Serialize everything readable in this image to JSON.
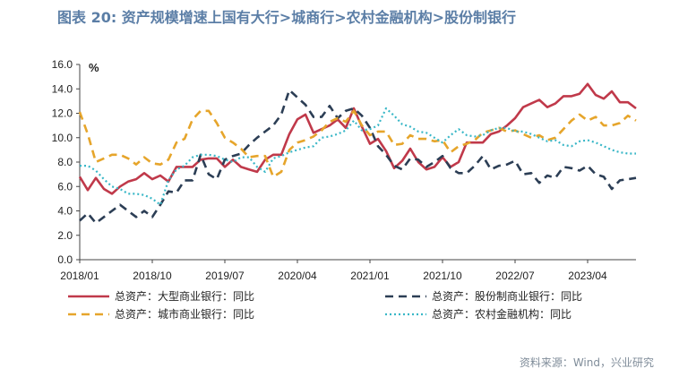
{
  "title": "图表 20: 资产规模增速上国有大行>城商行>农村金融机构>股份制银行",
  "source": "资料来源：Wind，兴业研究",
  "chart_data": {
    "type": "line",
    "unit": "%",
    "ylim": [
      0,
      16
    ],
    "yticks": [
      "0.0",
      "2.0",
      "4.0",
      "6.0",
      "8.0",
      "10.0",
      "12.0",
      "14.0",
      "16.0"
    ],
    "xticks": [
      {
        "label": "2018/01",
        "index": 0
      },
      {
        "label": "2018/10",
        "index": 9
      },
      {
        "label": "2019/07",
        "index": 18
      },
      {
        "label": "2020/04",
        "index": 27
      },
      {
        "label": "2021/01",
        "index": 36
      },
      {
        "label": "2021/10",
        "index": 45
      },
      {
        "label": "2022/07",
        "index": 54
      },
      {
        "label": "2023/04",
        "index": 63
      }
    ],
    "grid": false,
    "legend_position": "bottom",
    "series": [
      {
        "name": "总资产：大型商业银行：同比",
        "color": "#c0394a",
        "style": "solid",
        "values": [
          6.8,
          5.7,
          6.7,
          5.8,
          5.4,
          6.0,
          6.4,
          6.6,
          7.1,
          6.6,
          6.9,
          6.4,
          7.6,
          7.6,
          7.6,
          8.2,
          8.3,
          8.3,
          7.6,
          8.2,
          7.6,
          7.4,
          7.2,
          8.2,
          8.6,
          8.6,
          10.3,
          11.5,
          11.9,
          10.4,
          10.7,
          11.0,
          11.5,
          10.8,
          12.4,
          10.9,
          9.5,
          9.9,
          8.9,
          7.5,
          8.1,
          9.1,
          8.0,
          7.4,
          7.6,
          8.4,
          7.6,
          8.0,
          9.6,
          9.6,
          9.6,
          10.3,
          10.5,
          11.0,
          11.6,
          12.5,
          12.8,
          13.1,
          12.5,
          12.8,
          13.4,
          13.4,
          13.6,
          14.4,
          13.5,
          13.2,
          13.8,
          12.9,
          12.9,
          12.4
        ]
      },
      {
        "name": "总资产：股份制商业银行：同比",
        "color": "#2c3e55",
        "style": "dash",
        "values": [
          3.2,
          3.8,
          3.0,
          3.5,
          4.0,
          4.5,
          4.0,
          3.5,
          4.0,
          3.5,
          4.5,
          5.6,
          5.5,
          6.5,
          6.5,
          8.6,
          7.0,
          6.6,
          8.2,
          8.5,
          8.7,
          9.4,
          10.0,
          10.5,
          11.0,
          11.9,
          13.9,
          13.3,
          12.7,
          11.7,
          11.7,
          12.6,
          11.6,
          12.2,
          12.4,
          11.8,
          10.8,
          9.3,
          8.6,
          7.7,
          7.4,
          8.3,
          8.2,
          7.6,
          8.0,
          8.5,
          7.5,
          7.1,
          7.1,
          7.7,
          8.5,
          7.4,
          7.7,
          7.8,
          8.1,
          7.0,
          7.1,
          6.3,
          6.9,
          6.7,
          7.6,
          7.5,
          7.3,
          7.7,
          7.0,
          6.8,
          5.8,
          6.5,
          6.6,
          6.7
        ]
      },
      {
        "name": "总资产：城市商业银行：同比",
        "color": "#e6a52b",
        "style": "dash",
        "values": [
          12.1,
          10.3,
          8.0,
          8.3,
          8.6,
          8.6,
          8.3,
          7.8,
          8.4,
          7.9,
          7.8,
          8.2,
          9.6,
          9.9,
          11.5,
          12.2,
          12.2,
          11.2,
          10.0,
          9.6,
          9.1,
          8.4,
          8.5,
          8.5,
          6.8,
          7.2,
          9.0,
          9.6,
          9.8,
          10.1,
          10.6,
          11.3,
          11.6,
          11.3,
          12.2,
          11.0,
          10.2,
          10.5,
          10.5,
          9.4,
          9.5,
          10.2,
          9.9,
          9.9,
          9.7,
          9.8,
          8.8,
          9.3,
          9.5,
          9.8,
          10.4,
          10.6,
          10.8,
          10.5,
          10.6,
          10.3,
          10.0,
          10.2,
          9.8,
          10.0,
          10.7,
          11.4,
          11.9,
          11.4,
          11.7,
          11.0,
          11.0,
          11.2,
          11.8,
          11.4
        ]
      },
      {
        "name": "总资产：农村金融机构：同比",
        "color": "#39b7c7",
        "style": "dot",
        "values": [
          7.7,
          7.7,
          7.3,
          6.6,
          6.0,
          5.8,
          5.4,
          5.4,
          5.3,
          5.0,
          4.5,
          6.5,
          7.4,
          7.7,
          8.4,
          8.6,
          8.6,
          8.5,
          8.2,
          8.0,
          8.4,
          8.4,
          7.6,
          7.2,
          8.3,
          8.5,
          8.8,
          9.0,
          9.2,
          9.3,
          10.0,
          10.1,
          10.3,
          10.6,
          11.4,
          10.6,
          10.7,
          11.0,
          12.4,
          11.8,
          11.1,
          10.9,
          10.5,
          10.4,
          10.0,
          9.6,
          10.2,
          10.7,
          10.2,
          10.1,
          10.2,
          10.6,
          10.8,
          10.8,
          10.5,
          10.5,
          10.3,
          10.0,
          9.7,
          9.8,
          9.4,
          9.3,
          9.7,
          9.8,
          9.6,
          9.3,
          9.0,
          8.8,
          8.7,
          8.7
        ]
      }
    ]
  }
}
